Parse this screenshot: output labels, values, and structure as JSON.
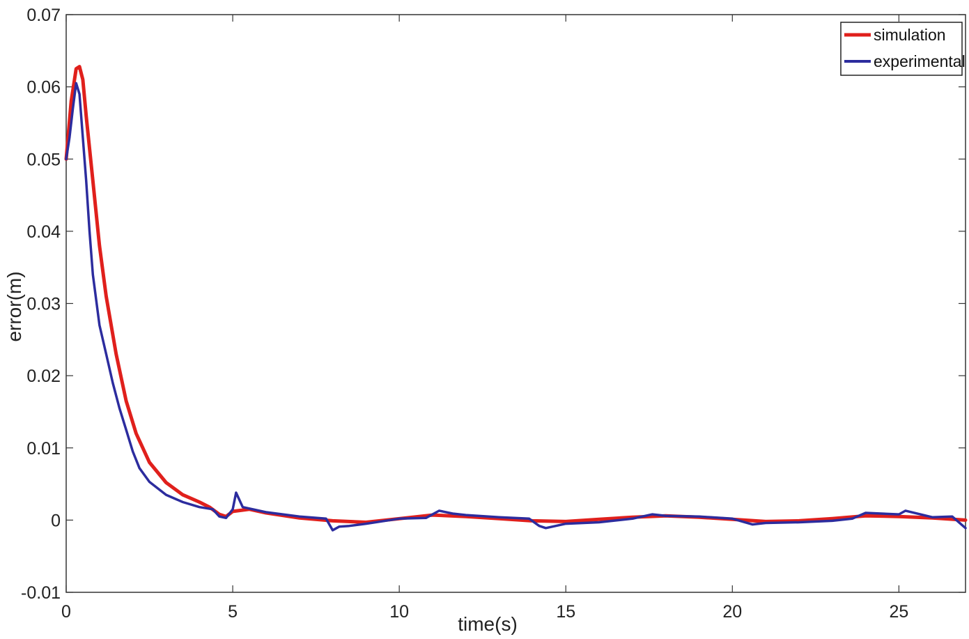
{
  "chart_data": {
    "type": "line",
    "title": "",
    "xlabel": "time(s)",
    "ylabel": "error(m)",
    "xlim": [
      0,
      27
    ],
    "ylim": [
      -0.01,
      0.07
    ],
    "xticks": [
      0,
      5,
      10,
      15,
      20,
      25
    ],
    "xtick_labels": [
      "0",
      "5",
      "10",
      "15",
      "20",
      "25"
    ],
    "yticks": [
      -0.01,
      0,
      0.01,
      0.02,
      0.03,
      0.04,
      0.05,
      0.06,
      0.07
    ],
    "ytick_labels": [
      "-0.01",
      "0",
      "0.01",
      "0.02",
      "0.03",
      "0.04",
      "0.05",
      "0.06",
      "0.07"
    ],
    "grid": false,
    "legend": "top-right",
    "series": [
      {
        "name": "simulation",
        "color": "#e0201c",
        "x": [
          0,
          0.15,
          0.3,
          0.4,
          0.5,
          0.6,
          0.8,
          1.0,
          1.2,
          1.5,
          1.8,
          2.1,
          2.5,
          3.0,
          3.5,
          4.0,
          4.3,
          4.6,
          4.8,
          5.0,
          5.5,
          6.0,
          7.0,
          8.0,
          9.0,
          10.0,
          11.0,
          12.0,
          13.0,
          14.0,
          15.0,
          16.0,
          17.0,
          18.0,
          19.0,
          20.0,
          21.0,
          22.0,
          23.0,
          24.0,
          25.0,
          26.0,
          27.0
        ],
        "y": [
          0.05,
          0.058,
          0.0625,
          0.0628,
          0.061,
          0.056,
          0.047,
          0.038,
          0.031,
          0.023,
          0.0165,
          0.012,
          0.008,
          0.0052,
          0.0035,
          0.0025,
          0.0018,
          0.0008,
          0.0005,
          0.0012,
          0.0015,
          0.001,
          0.0003,
          -0.0001,
          -0.0003,
          0.0002,
          0.0007,
          0.0005,
          0.0002,
          -0.0001,
          -0.0002,
          0.0001,
          0.0004,
          0.0006,
          0.0004,
          0.0001,
          -0.0002,
          -0.0001,
          0.0002,
          0.0006,
          0.0005,
          0.0003,
          0.0
        ]
      },
      {
        "name": "experimental",
        "color": "#2c2c9e",
        "x": [
          0,
          0.1,
          0.2,
          0.3,
          0.4,
          0.5,
          0.6,
          0.7,
          0.8,
          1.0,
          1.2,
          1.4,
          1.6,
          1.8,
          2.0,
          2.2,
          2.5,
          3.0,
          3.5,
          4.0,
          4.4,
          4.6,
          4.8,
          5.0,
          5.1,
          5.3,
          5.6,
          6.0,
          7.0,
          7.8,
          8.0,
          8.2,
          8.5,
          9.0,
          10.0,
          10.8,
          11.2,
          11.6,
          12.0,
          13.0,
          13.9,
          14.2,
          14.4,
          15.0,
          16.0,
          17.0,
          17.6,
          18.0,
          19.0,
          20.0,
          20.6,
          21.0,
          22.0,
          23.0,
          23.6,
          24.0,
          25.0,
          25.2,
          26.0,
          26.6,
          27.0
        ],
        "y": [
          0.05,
          0.053,
          0.057,
          0.0605,
          0.059,
          0.053,
          0.047,
          0.04,
          0.034,
          0.027,
          0.023,
          0.019,
          0.0155,
          0.0125,
          0.0095,
          0.0072,
          0.0053,
          0.0035,
          0.0025,
          0.0018,
          0.0015,
          0.0005,
          0.0003,
          0.0015,
          0.0038,
          0.0018,
          0.0015,
          0.0011,
          0.0005,
          0.0002,
          -0.0014,
          -0.0009,
          -0.0008,
          -0.0005,
          0.0002,
          0.0003,
          0.0013,
          0.0009,
          0.0007,
          0.0004,
          0.0002,
          -0.0008,
          -0.0011,
          -0.0005,
          -0.0003,
          0.0002,
          0.0008,
          0.0006,
          0.0005,
          0.0002,
          -0.0006,
          -0.0004,
          -0.0003,
          -0.0001,
          0.0002,
          0.001,
          0.0008,
          0.0013,
          0.0004,
          0.0005,
          -0.0011
        ]
      }
    ]
  }
}
